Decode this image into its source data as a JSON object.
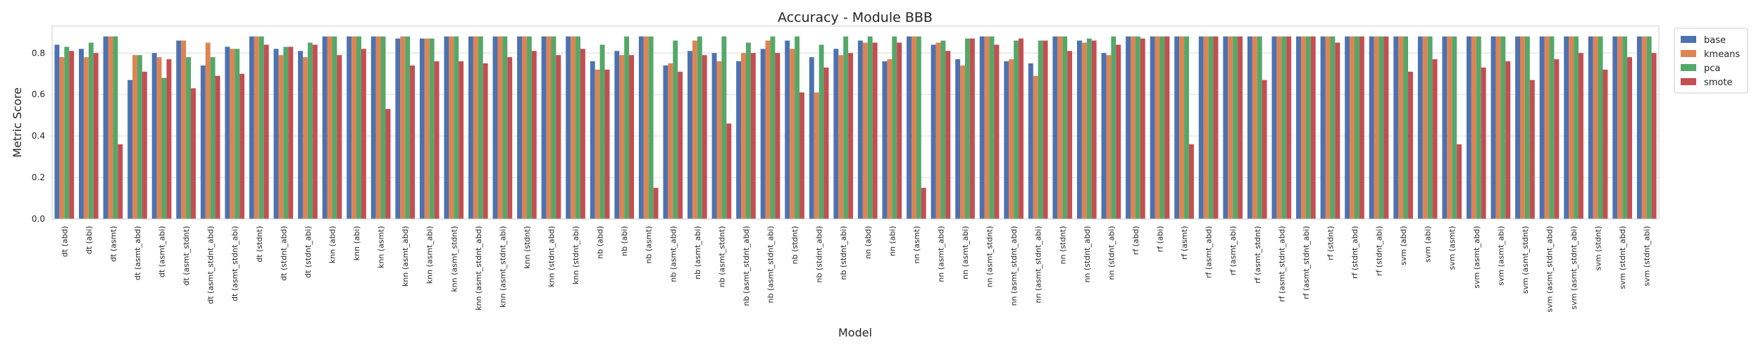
{
  "chart_data": {
    "type": "bar",
    "title": "Accuracy - Module BBB",
    "xlabel": "Model",
    "ylabel": "Metric Score",
    "ylim": [
      0,
      0.93
    ],
    "yticks": [
      0.0,
      0.2,
      0.4,
      0.6,
      0.8
    ],
    "ytick_labels": [
      "0.0",
      "0.2",
      "0.4",
      "0.6",
      "0.8"
    ],
    "grid": true,
    "legend_position": "top-right, outside plot",
    "categories": [
      "dt (abd)",
      "dt (abi)",
      "dt (asmt)",
      "dt (asmt_abd)",
      "dt (asmt_abi)",
      "dt (asmt_stdnt)",
      "dt (asmt_stdnt_abd)",
      "dt (asmt_stdnt_abi)",
      "dt (stdnt)",
      "dt (stdnt_abd)",
      "dt (stdnt_abi)",
      "knn (abd)",
      "knn (abi)",
      "knn (asmt)",
      "knn (asmt_abd)",
      "knn (asmt_abi)",
      "knn (asmt_stdnt)",
      "knn (asmt_stdnt_abd)",
      "knn (asmt_stdnt_abi)",
      "knn (stdnt)",
      "knn (stdnt_abd)",
      "knn (stdnt_abi)",
      "nb (abd)",
      "nb (abi)",
      "nb (asmt)",
      "nb (asmt_abd)",
      "nb (asmt_abi)",
      "nb (asmt_stdnt)",
      "nb (asmt_stdnt_abd)",
      "nb (asmt_stdnt_abi)",
      "nb (stdnt)",
      "nb (stdnt_abd)",
      "nb (stdnt_abi)",
      "nn (abd)",
      "nn (abi)",
      "nn (asmt)",
      "nn (asmt_abd)",
      "nn (asmt_abi)",
      "nn (asmt_stdnt)",
      "nn (asmt_stdnt_abd)",
      "nn (asmt_stdnt_abi)",
      "nn (stdnt)",
      "nn (stdnt_abd)",
      "nn (stdnt_abi)",
      "rf (abd)",
      "rf (abi)",
      "rf (asmt)",
      "rf (asmt_abd)",
      "rf (asmt_abi)",
      "rf (asmt_stdnt)",
      "rf (asmt_stdnt_abd)",
      "rf (asmt_stdnt_abi)",
      "rf (stdnt)",
      "rf (stdnt_abd)",
      "rf (stdnt_abi)",
      "svm (abd)",
      "svm (abi)",
      "svm (asmt)",
      "svm (asmt_abd)",
      "svm (asmt_abi)",
      "svm (asmt_stdnt)",
      "svm (asmt_stdnt_abd)",
      "svm (asmt_stdnt_abi)",
      "svm (stdnt)",
      "svm (stdnt_abd)",
      "svm (stdnt_abi)"
    ],
    "series": [
      {
        "name": "base",
        "color": "#4c72b0",
        "values": [
          0.84,
          0.82,
          0.88,
          0.67,
          0.8,
          0.86,
          0.74,
          0.83,
          0.88,
          0.82,
          0.81,
          0.88,
          0.88,
          0.88,
          0.87,
          0.87,
          0.88,
          0.88,
          0.88,
          0.88,
          0.88,
          0.88,
          0.76,
          0.81,
          0.88,
          0.74,
          0.81,
          0.8,
          0.76,
          0.82,
          0.86,
          0.78,
          0.82,
          0.86,
          0.76,
          0.88,
          0.84,
          0.77,
          0.88,
          0.76,
          0.75,
          0.88,
          0.86,
          0.8,
          0.88,
          0.88,
          0.88,
          0.88,
          0.88,
          0.88,
          0.88,
          0.88,
          0.88,
          0.88,
          0.88,
          0.88,
          0.88,
          0.88,
          0.88,
          0.88,
          0.88,
          0.88,
          0.88,
          0.88,
          0.88,
          0.88
        ]
      },
      {
        "name": "kmeans",
        "color": "#dd8452",
        "values": [
          0.78,
          0.78,
          0.88,
          0.79,
          0.78,
          0.86,
          0.85,
          0.82,
          0.88,
          0.79,
          0.78,
          0.88,
          0.88,
          0.88,
          0.88,
          0.87,
          0.88,
          0.88,
          0.88,
          0.88,
          0.88,
          0.88,
          0.72,
          0.79,
          0.88,
          0.75,
          0.86,
          0.76,
          0.8,
          0.86,
          0.82,
          0.61,
          0.79,
          0.85,
          0.77,
          0.88,
          0.85,
          0.74,
          0.88,
          0.77,
          0.69,
          0.88,
          0.85,
          0.79,
          0.88,
          0.88,
          0.88,
          0.88,
          0.88,
          0.88,
          0.88,
          0.88,
          0.88,
          0.88,
          0.88,
          0.88,
          0.88,
          0.88,
          0.88,
          0.88,
          0.88,
          0.88,
          0.88,
          0.88,
          0.88,
          0.88
        ]
      },
      {
        "name": "pca",
        "color": "#55a868",
        "values": [
          0.83,
          0.85,
          0.88,
          0.79,
          0.68,
          0.78,
          0.78,
          0.82,
          0.88,
          0.83,
          0.85,
          0.88,
          0.88,
          0.88,
          0.88,
          0.87,
          0.88,
          0.88,
          0.88,
          0.88,
          0.88,
          0.88,
          0.84,
          0.88,
          0.88,
          0.86,
          0.88,
          0.88,
          0.85,
          0.88,
          0.88,
          0.84,
          0.88,
          0.88,
          0.88,
          0.88,
          0.86,
          0.87,
          0.88,
          0.86,
          0.86,
          0.88,
          0.87,
          0.88,
          0.88,
          0.88,
          0.88,
          0.88,
          0.88,
          0.88,
          0.88,
          0.88,
          0.88,
          0.88,
          0.88,
          0.88,
          0.88,
          0.88,
          0.88,
          0.88,
          0.88,
          0.88,
          0.88,
          0.88,
          0.88,
          0.88
        ]
      },
      {
        "name": "smote",
        "color": "#c44e52",
        "values": [
          0.81,
          0.8,
          0.36,
          0.71,
          0.77,
          0.63,
          0.69,
          0.7,
          0.84,
          0.83,
          0.84,
          0.79,
          0.82,
          0.53,
          0.74,
          0.76,
          0.76,
          0.75,
          0.78,
          0.81,
          0.79,
          0.82,
          0.72,
          0.79,
          0.15,
          0.71,
          0.79,
          0.46,
          0.8,
          0.8,
          0.61,
          0.73,
          0.8,
          0.85,
          0.85,
          0.15,
          0.81,
          0.87,
          0.84,
          0.87,
          0.86,
          0.81,
          0.86,
          0.84,
          0.87,
          0.88,
          0.36,
          0.88,
          0.88,
          0.67,
          0.88,
          0.88,
          0.85,
          0.88,
          0.88,
          0.71,
          0.77,
          0.36,
          0.73,
          0.76,
          0.67,
          0.77,
          0.8,
          0.72,
          0.78,
          0.8
        ]
      }
    ]
  }
}
